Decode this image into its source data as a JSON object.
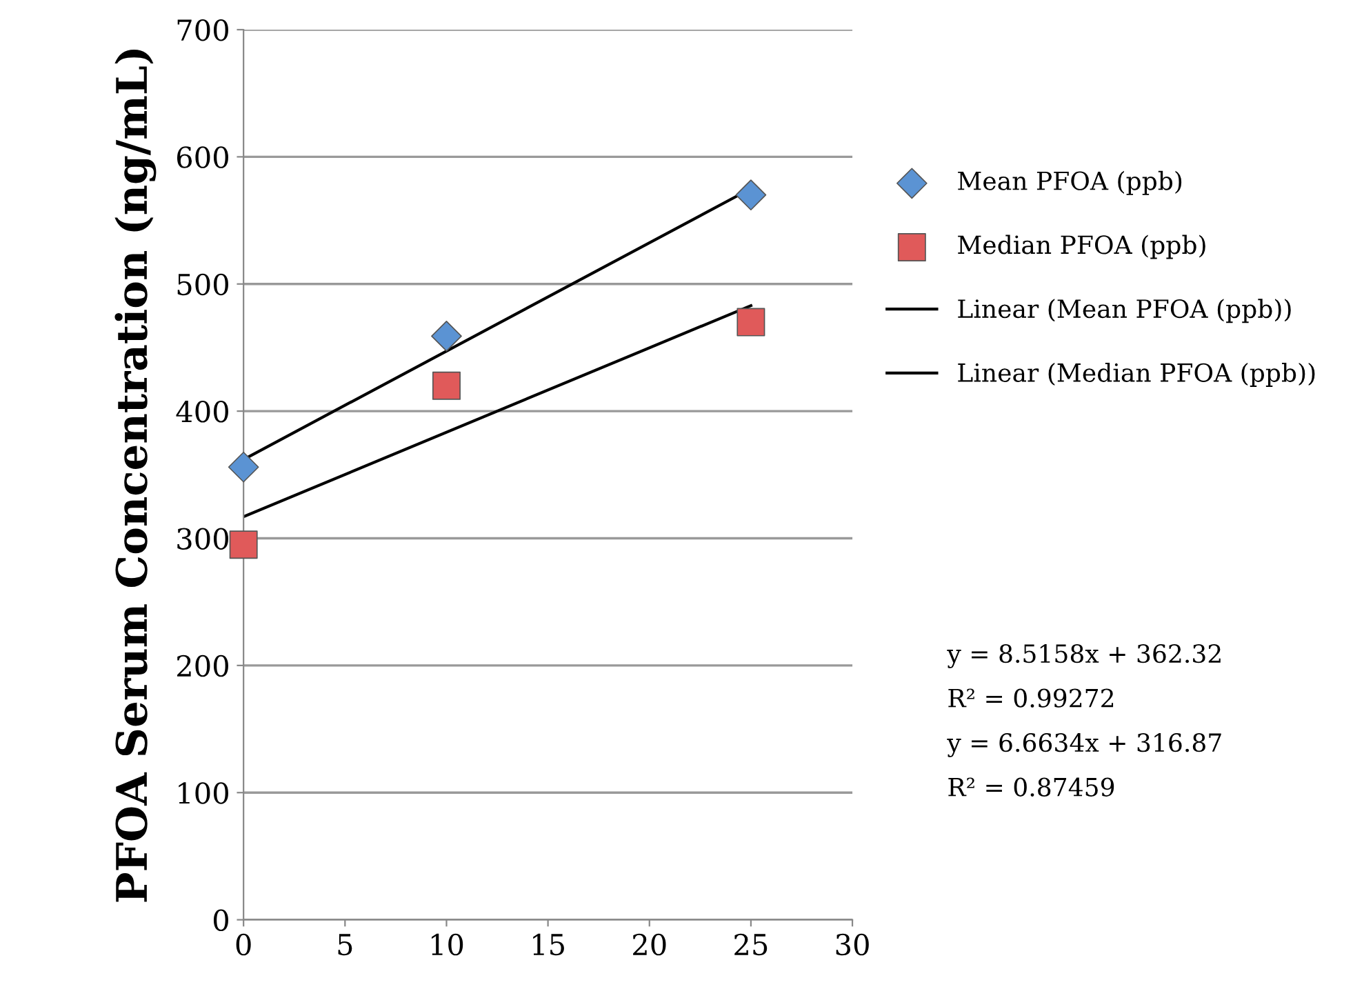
{
  "chart_data": {
    "type": "scatter",
    "ylabel": "PFOA Serum Concentration (ng/mL)",
    "xlim": [
      0,
      30
    ],
    "xticks": [
      0,
      5,
      10,
      15,
      20,
      25,
      30
    ],
    "ylim": [
      0,
      700
    ],
    "yticks": [
      0,
      100,
      200,
      300,
      400,
      500,
      600,
      700
    ],
    "grid": "y",
    "legend": "right",
    "series": [
      {
        "name": "Mean PFOA (ppb)",
        "marker": "diamond",
        "color": "#5b93d3",
        "x": [
          0,
          10,
          25
        ],
        "values": [
          356,
          459,
          570
        ]
      },
      {
        "name": "Median PFOA (ppb)",
        "marker": "square",
        "color": "#e05a5a",
        "x": [
          0,
          10,
          25
        ],
        "values": [
          295,
          420,
          470
        ]
      },
      {
        "name": "Linear (Mean PFOA (ppb))",
        "type": "line",
        "marker": "none",
        "color": "#000000",
        "x": [
          0,
          25
        ],
        "values": [
          362,
          575
        ]
      },
      {
        "name": "Linear (Median PFOA (ppb))",
        "type": "line",
        "marker": "none",
        "color": "#000000",
        "x": [
          0,
          25
        ],
        "values": [
          317,
          483
        ]
      }
    ],
    "annotations": [
      "y = 8.5158x + 362.32",
      "R² = 0.99272",
      "y = 6.6634x + 316.87",
      "R² = 0.87459"
    ]
  }
}
